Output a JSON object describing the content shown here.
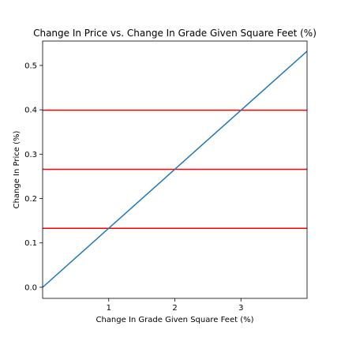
{
  "chart_data": {
    "type": "line",
    "title": "Change In Price vs. Change In Grade Given Square Feet (%)",
    "xlabel": "Change In Grade Given Square Feet (%)",
    "ylabel": "Change In Price (%)",
    "xlim": [
      0,
      4
    ],
    "ylim": [
      -0.025,
      0.555
    ],
    "xticks": [
      1,
      2,
      3
    ],
    "yticks": [
      0.0,
      0.1,
      0.2,
      0.3,
      0.4,
      0.5
    ],
    "xtick_labels": [
      "1",
      "2",
      "3"
    ],
    "ytick_labels": [
      "0.0",
      "0.1",
      "0.2",
      "0.3",
      "0.4",
      "0.5"
    ],
    "grid": false,
    "series": [
      {
        "x": [
          0,
          4
        ],
        "y": [
          0.0,
          0.532
        ],
        "color": "#1f77b4"
      }
    ],
    "hlines": [
      {
        "y": 0.133,
        "color": "#ff0000"
      },
      {
        "y": 0.266,
        "color": "#ff0000"
      },
      {
        "y": 0.399,
        "color": "#ff0000"
      }
    ]
  }
}
